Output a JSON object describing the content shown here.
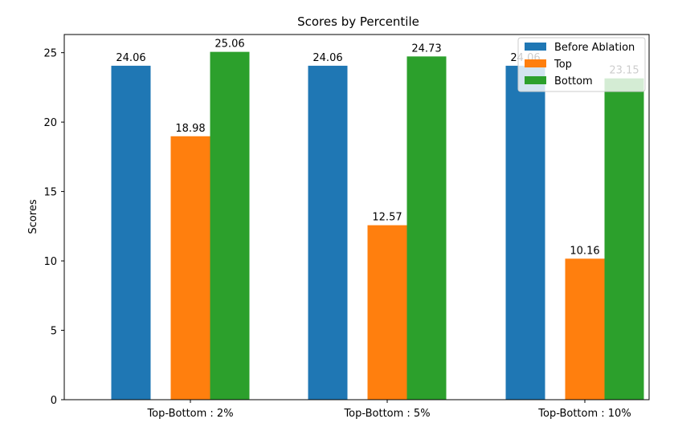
{
  "chart_data": {
    "type": "bar",
    "title": "Scores by Percentile",
    "xlabel": "",
    "ylabel": "Scores",
    "categories": [
      "Top-Bottom : 2%",
      "Top-Bottom : 5%",
      "Top-Bottom : 10%"
    ],
    "ylim": [
      0,
      26.31
    ],
    "yticks": [
      0,
      5,
      10,
      15,
      20,
      25
    ],
    "series": [
      {
        "name": "Before Ablation",
        "color": "#1f77b4",
        "values": [
          24.06,
          24.06,
          24.06
        ],
        "labels": [
          "24.06",
          "24.06",
          "24.06"
        ]
      },
      {
        "name": "Top",
        "color": "#ff7f0e",
        "values": [
          18.98,
          12.57,
          10.16
        ],
        "labels": [
          "18.98",
          "12.57",
          "10.16"
        ]
      },
      {
        "name": "Bottom",
        "color": "#2ca02c",
        "values": [
          25.06,
          24.73,
          23.15
        ],
        "labels": [
          "25.06",
          "24.73",
          "23.15"
        ]
      }
    ],
    "legend": "top-right",
    "grid": false
  }
}
